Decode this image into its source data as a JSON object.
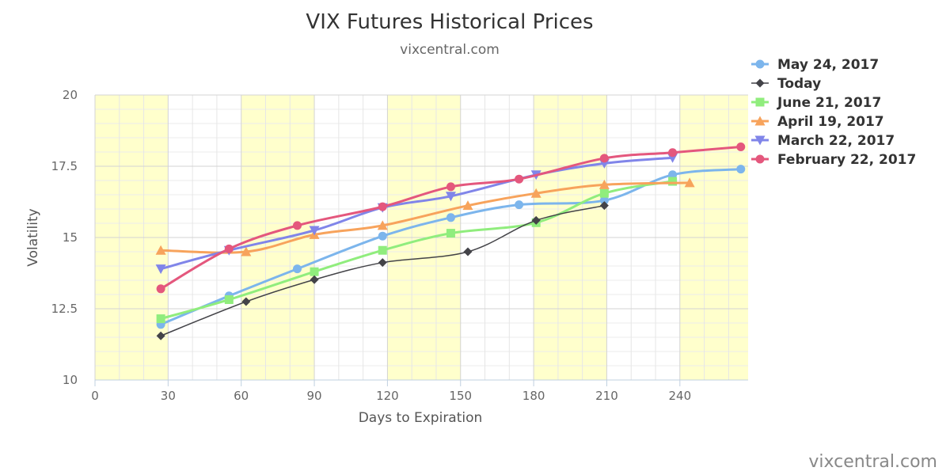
{
  "chart_data": {
    "type": "line",
    "title": "VIX Futures Historical Prices",
    "subtitle": "vixcentral.com",
    "xlabel": "Days to Expiration",
    "ylabel": "Volatility",
    "xlim": [
      0,
      268
    ],
    "ylim": [
      10,
      20
    ],
    "x_ticks": [
      0,
      30,
      60,
      90,
      120,
      150,
      180,
      210,
      240
    ],
    "y_ticks": [
      10,
      12.5,
      15,
      17.5,
      20
    ],
    "y_tick_labels": [
      "10",
      "12.5",
      "15",
      "17.5",
      "20"
    ],
    "grid": true,
    "shaded_bands": [
      [
        0,
        30
      ],
      [
        60,
        90
      ],
      [
        120,
        150
      ],
      [
        180,
        210
      ],
      [
        240,
        268
      ]
    ],
    "band_color": "#ffffcc",
    "legend_position": "top-right",
    "series": [
      {
        "name": "May 24, 2017",
        "color": "#7cb5ec",
        "marker": "circle",
        "x": [
          27,
          55,
          83,
          118,
          146,
          174,
          209,
          237,
          265
        ],
        "y": [
          11.95,
          12.95,
          13.9,
          15.05,
          15.7,
          16.15,
          16.3,
          17.2,
          17.4
        ]
      },
      {
        "name": "Today",
        "color": "#434348",
        "marker": "diamond",
        "x": [
          27,
          62,
          90,
          118,
          153,
          181,
          209
        ],
        "y": [
          11.55,
          12.75,
          13.52,
          14.12,
          14.5,
          15.6,
          16.12
        ]
      },
      {
        "name": "June 21, 2017",
        "color": "#90ed7d",
        "marker": "square",
        "x": [
          27,
          55,
          90,
          118,
          146,
          181,
          209,
          237
        ],
        "y": [
          12.15,
          12.82,
          13.8,
          14.55,
          15.15,
          15.52,
          16.55,
          16.97
        ]
      },
      {
        "name": "April 19, 2017",
        "color": "#f7a35c",
        "marker": "triangle",
        "x": [
          27,
          62,
          90,
          118,
          153,
          181,
          209,
          244
        ],
        "y": [
          14.55,
          14.5,
          15.1,
          15.42,
          16.12,
          16.55,
          16.85,
          16.92
        ]
      },
      {
        "name": "March 22, 2017",
        "color": "#8085e9",
        "marker": "triangle-down",
        "x": [
          27,
          55,
          90,
          118,
          146,
          181,
          209,
          237
        ],
        "y": [
          13.9,
          14.55,
          15.25,
          16.05,
          16.45,
          17.2,
          17.6,
          17.8
        ]
      },
      {
        "name": "February 22, 2017",
        "color": "#e4577d",
        "marker": "circle",
        "x": [
          27,
          55,
          83,
          118,
          146,
          174,
          209,
          237,
          265
        ],
        "y": [
          13.2,
          14.6,
          15.42,
          16.08,
          16.78,
          17.05,
          17.78,
          17.98,
          18.18
        ]
      }
    ]
  },
  "watermark": "vixcentral.com"
}
